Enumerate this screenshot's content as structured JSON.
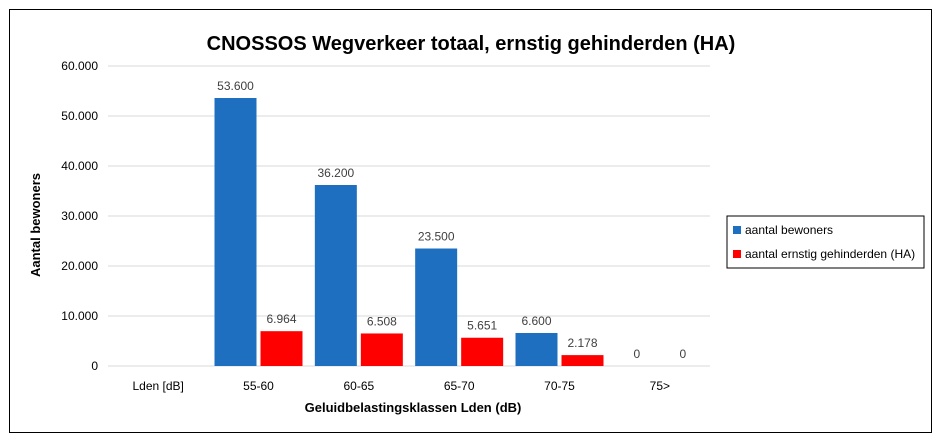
{
  "chart_data": {
    "type": "bar",
    "title": "CNOSSOS Wegverkeer totaal, ernstig gehinderden (HA)",
    "xlabel": "Geluidbelastingsklassen Lden (dB)",
    "ylabel": "Aantal bewoners",
    "categories": [
      "Lden [dB]",
      "55-60",
      "60-65",
      "65-70",
      "70-75",
      "75>"
    ],
    "series": [
      {
        "name": "aantal bewoners",
        "color": "#1f6fc0",
        "values": [
          null,
          53600,
          36200,
          23500,
          6600,
          0
        ],
        "labels": [
          "",
          "53.600",
          "36.200",
          "23.500",
          "6.600",
          "0"
        ]
      },
      {
        "name": "aantal ernstig gehinderden (HA)",
        "color": "#ff0000",
        "values": [
          null,
          6964,
          6508,
          5651,
          2178,
          0
        ],
        "labels": [
          "",
          "6.964",
          "6.508",
          "5.651",
          "2.178",
          "0"
        ]
      }
    ],
    "ylim": [
      0,
      60000
    ],
    "yticks": [
      0,
      10000,
      20000,
      30000,
      40000,
      50000,
      60000
    ],
    "ytick_labels": [
      "0",
      "10.000",
      "20.000",
      "30.000",
      "40.000",
      "50.000",
      "60.000"
    ],
    "grid": true,
    "legend": "right"
  }
}
